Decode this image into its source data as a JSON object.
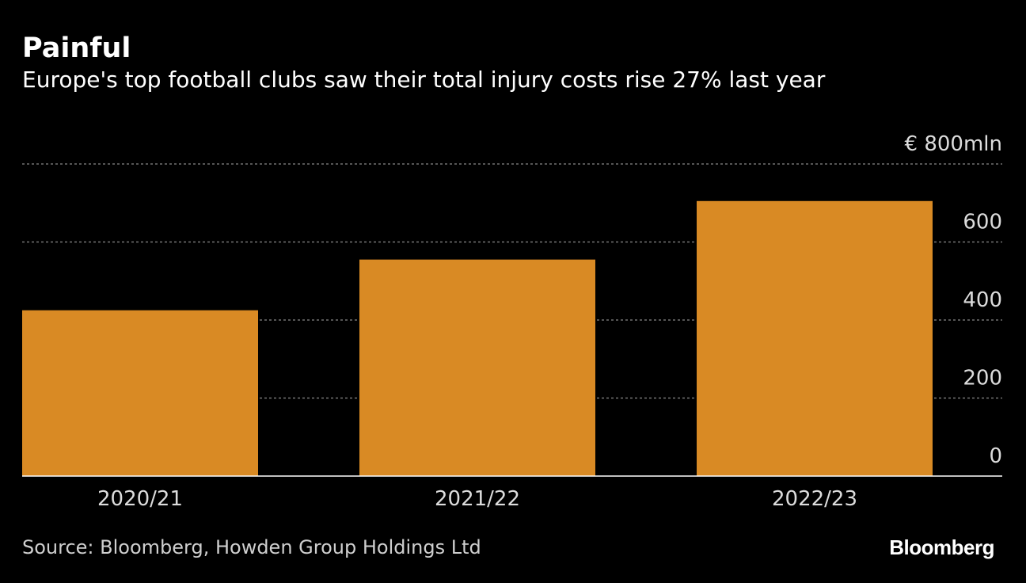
{
  "header": {
    "title": "Painful",
    "subtitle": "Europe's top football clubs saw their total injury costs rise 27% last year"
  },
  "chart_data": {
    "type": "bar",
    "categories": [
      "2020/21",
      "2021/22",
      "2022/23"
    ],
    "values": [
      425,
      555,
      705
    ],
    "ylim": [
      0,
      800
    ],
    "yticks": [
      0,
      200,
      400,
      600,
      800
    ],
    "ytick_labels": [
      "0",
      "200",
      "400",
      "600",
      "€ 800mln"
    ],
    "grid": true,
    "bar_color": "#d98a24"
  },
  "footer": {
    "source": "Source: Bloomberg, Howden Group Holdings Ltd",
    "brand": "Bloomberg"
  }
}
